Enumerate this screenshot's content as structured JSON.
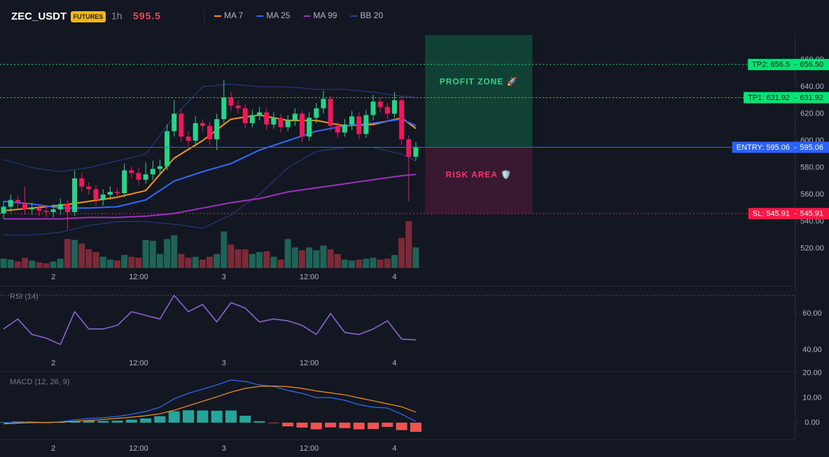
{
  "header": {
    "symbol": "ZEC_USDT",
    "badge": "FUTURES",
    "interval": "1h",
    "price": 595.5
  },
  "chart_data": [
    {
      "type": "candlestick",
      "xlim": [
        -0.5,
        111.4
      ],
      "xticks": [
        {
          "value": 7,
          "label": "2"
        },
        {
          "value": 19,
          "label": "12:00"
        },
        {
          "value": 31,
          "label": "3"
        },
        {
          "value": 43,
          "label": "12:00"
        },
        {
          "value": 55,
          "label": "4"
        }
      ],
      "ylim": [
        505.5,
        678.4
      ],
      "yticks": [
        {
          "value": 520,
          "label": "520.00"
        },
        {
          "value": 540,
          "label": "540.00"
        },
        {
          "value": 560,
          "label": "560.00"
        },
        {
          "value": 580,
          "label": "580.00"
        },
        {
          "value": 600,
          "label": "600.00"
        },
        {
          "value": 620,
          "label": "620.00"
        },
        {
          "value": 640,
          "label": "640.00"
        },
        {
          "value": 660,
          "label": "660.00"
        }
      ],
      "grid": false,
      "up_color": "#22d68a",
      "down_color": "#f0185a",
      "volume_up_color": "#1d6457",
      "volume_down_color": "#7c2a37",
      "vlim": [
        0,
        100
      ],
      "open": [
        546,
        551,
        556,
        554,
        549,
        550,
        548,
        547,
        549,
        553,
        547,
        572,
        566,
        564,
        556,
        560,
        562,
        561,
        578,
        576,
        571,
        575,
        579,
        581,
        607,
        620,
        603,
        600,
        613,
        611,
        601,
        616,
        632,
        626,
        624,
        613,
        619,
        621,
        612,
        617,
        610,
        615,
        620,
        603,
        617,
        624,
        631,
        611,
        606,
        612,
        618,
        605,
        619,
        629,
        625,
        620,
        630,
        601,
        588
      ],
      "high": [
        555,
        560,
        559,
        566,
        554,
        553,
        552,
        553,
        557,
        556,
        578,
        576,
        569,
        567,
        564,
        566,
        565,
        583,
        581,
        580,
        584,
        585,
        586,
        612,
        630,
        623,
        607,
        618,
        616,
        614,
        620,
        645,
        636,
        630,
        627,
        623,
        625,
        624,
        621,
        620,
        619,
        624,
        622,
        621,
        628,
        637,
        633,
        614,
        616,
        622,
        621,
        623,
        634,
        632,
        628,
        636,
        633,
        604,
        599
      ],
      "low": [
        542,
        547,
        550,
        545,
        545,
        544,
        543,
        543,
        545,
        534,
        544,
        562,
        560,
        552,
        552,
        556,
        557,
        558,
        572,
        567,
        568,
        571,
        575,
        578,
        603,
        599,
        596,
        596,
        607,
        597,
        593,
        612,
        622,
        620,
        609,
        610,
        615,
        608,
        609,
        606,
        607,
        611,
        599,
        600,
        613,
        620,
        607,
        602,
        603,
        608,
        601,
        602,
        615,
        621,
        616,
        617,
        597,
        555,
        585
      ],
      "close": [
        551,
        556,
        554,
        549,
        550,
        548,
        547,
        549,
        553,
        547,
        572,
        566,
        564,
        556,
        560,
        562,
        561,
        578,
        576,
        571,
        575,
        579,
        581,
        607,
        620,
        603,
        600,
        613,
        611,
        601,
        616,
        632,
        626,
        624,
        613,
        619,
        621,
        612,
        617,
        610,
        615,
        620,
        603,
        617,
        624,
        631,
        611,
        606,
        612,
        618,
        605,
        619,
        629,
        625,
        620,
        630,
        601,
        588,
        595.5
      ],
      "volume": [
        20,
        18,
        14,
        22,
        16,
        12,
        10,
        14,
        20,
        62,
        60,
        52,
        40,
        34,
        24,
        18,
        16,
        28,
        24,
        22,
        60,
        58,
        30,
        62,
        70,
        30,
        22,
        24,
        18,
        24,
        30,
        78,
        50,
        40,
        40,
        30,
        34,
        36,
        24,
        18,
        62,
        44,
        38,
        44,
        38,
        48,
        40,
        30,
        18,
        16,
        18,
        20,
        22,
        18,
        20,
        28,
        64,
        100,
        44
      ],
      "line_x": [
        0,
        4,
        8,
        12,
        16,
        20,
        24,
        28,
        32,
        36,
        40,
        44,
        48,
        52,
        56,
        58
      ],
      "series": [
        {
          "name": "MA 7",
          "color": "#f7931a",
          "values": [
            548,
            550,
            552,
            555,
            558,
            563,
            587,
            600,
            616,
            619,
            615,
            615,
            611,
            612,
            617,
            609
          ]
        },
        {
          "name": "MA 25",
          "color": "#2f6bff",
          "values": [
            555,
            553,
            550,
            550,
            551,
            556,
            570,
            577,
            583,
            593,
            600,
            607,
            611,
            613,
            616,
            611
          ]
        },
        {
          "name": "MA 99",
          "color": "#a030c0",
          "values": [
            542,
            542,
            542,
            543,
            543,
            544,
            546,
            550,
            554,
            557,
            562,
            565,
            568,
            571,
            574,
            575
          ]
        },
        {
          "name": "BB 20",
          "color": "#2a3f8f",
          "upper": [
            586,
            580,
            577,
            580,
            585,
            590,
            618,
            640,
            642,
            640,
            640,
            638,
            638,
            636,
            633,
            632
          ],
          "lower": [
            530,
            530,
            532,
            537,
            540,
            540,
            538,
            535,
            545,
            560,
            580,
            592,
            595,
            595,
            590,
            585
          ]
        }
      ],
      "levels": [
        {
          "value": 656.5,
          "label": "TP2: 656.5",
          "separator": "-",
          "price_label": "656.50",
          "color": "#00e676",
          "text_color": "#0b1a10",
          "dashed": true
        },
        {
          "value": 631.92,
          "label": "TP1: 631.92",
          "separator": "-",
          "price_label": "631.92",
          "color": "#00e676",
          "text_color": "#0b1a10",
          "dashed": true
        },
        {
          "value": 595.06,
          "label": "ENTRY: 595.06",
          "separator": "-",
          "price_label": "595.06",
          "color": "#2962ff",
          "text_color": "#ffffff",
          "dashed": false
        },
        {
          "value": 545.91,
          "label": "SL: 545.91",
          "separator": "-",
          "price_label": "545.91",
          "color": "#ff1744",
          "text_color": "#ffffff",
          "dashed": true
        }
      ],
      "zones": [
        {
          "label": "PROFIT ZONE 🚀",
          "from": 595.06,
          "to": 678.4,
          "x": [
            59.3,
            74.4
          ],
          "color": "#124536",
          "text_color": "#2fd28a"
        },
        {
          "label": "RISK AREA 🛡️",
          "from": 545.91,
          "to": 595.06,
          "x": [
            59.3,
            74.4
          ],
          "color": "#3d1a33",
          "text_color": "#ff2d6e"
        }
      ]
    },
    {
      "type": "line",
      "title": "RSI (14)",
      "xlim": [
        -0.5,
        111.4
      ],
      "x": [
        0,
        2,
        4,
        6,
        8,
        10,
        12,
        14,
        16,
        18,
        20,
        22,
        24,
        26,
        28,
        30,
        32,
        34,
        36,
        38,
        40,
        42,
        44,
        46,
        48,
        50,
        52,
        54,
        56,
        58
      ],
      "values": [
        51.5,
        57,
        48.5,
        46.5,
        43,
        61,
        51.5,
        51.5,
        53.5,
        61,
        59,
        57,
        70,
        61,
        65,
        55.4,
        66,
        63,
        55.4,
        57,
        56,
        53.5,
        48.5,
        60,
        49.6,
        48.5,
        51.5,
        56,
        46,
        45.5
      ],
      "color": "#8a63d2",
      "ylim": [
        38.1,
        74.6
      ],
      "yticks": [
        {
          "value": 40,
          "label": "40.00"
        },
        {
          "value": 60,
          "label": "60.00"
        }
      ],
      "hline": 70
    },
    {
      "type": "macd",
      "title": "MACD (12, 26, 9)",
      "xlim": [
        -0.5,
        111.4
      ],
      "x": [
        0,
        2,
        4,
        6,
        8,
        10,
        12,
        14,
        16,
        18,
        20,
        22,
        24,
        26,
        28,
        30,
        32,
        34,
        36,
        38,
        40,
        42,
        44,
        46,
        48,
        50,
        52,
        54,
        56,
        58
      ],
      "macd": {
        "color": "#2f6bff",
        "values": [
          -0.3,
          0.3,
          0.3,
          0,
          0.3,
          1.1,
          1.7,
          2,
          2.5,
          3.4,
          4.5,
          6.2,
          9.6,
          11.8,
          13.5,
          15.2,
          17.2,
          16.6,
          15.2,
          14.6,
          13,
          11.8,
          10.1,
          10.1,
          9,
          7.3,
          6.2,
          5.9,
          3.4,
          0.5
        ]
      },
      "signal": {
        "color": "#f7931a",
        "values": [
          -0.5,
          -0.2,
          0,
          0.1,
          0.2,
          0.5,
          0.9,
          1.3,
          1.7,
          2.2,
          2.8,
          3.6,
          5,
          6.8,
          8.6,
          10.4,
          12.3,
          13.8,
          14.6,
          14.8,
          14.5,
          13.8,
          12.8,
          12,
          11.2,
          10,
          8.8,
          7.6,
          6.4,
          4.2
        ]
      },
      "histogram": {
        "up_color": "#26a69a",
        "down_color": "#ef5350",
        "values": [
          0.2,
          0.5,
          0.3,
          -0.1,
          0.1,
          0.6,
          0.8,
          0.7,
          0.8,
          1.2,
          1.7,
          2.6,
          4.6,
          5,
          4.9,
          4.8,
          4.9,
          2.8,
          0.6,
          -0.2,
          -1.5,
          -2,
          -2.7,
          -1.9,
          -2.2,
          -2.7,
          -2.6,
          -1.7,
          -3,
          -3.7
        ]
      },
      "ylim": [
        -6.8,
        20.3
      ],
      "yticks": [
        {
          "value": 0,
          "label": "0.00"
        },
        {
          "value": 10,
          "label": "10.00"
        },
        {
          "value": 20,
          "label": "20.00"
        }
      ]
    }
  ]
}
